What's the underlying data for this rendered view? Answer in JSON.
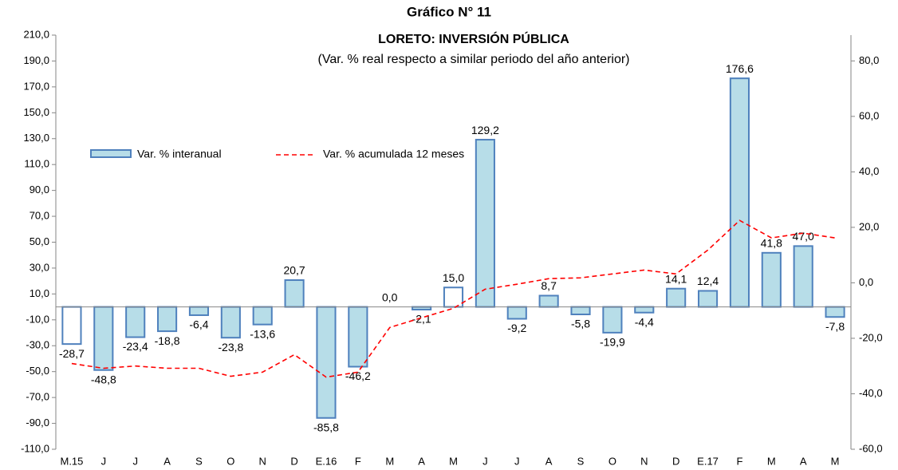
{
  "chart_data": {
    "type": "bar-line",
    "title": "Gráfico N° 11",
    "subtitle": "LORETO: INVERSIÓN PÚBLICA",
    "note": "(Var. % real respecto a similar periodo del año anterior)",
    "categories": [
      "M.15",
      "J",
      "J",
      "A",
      "S",
      "O",
      "N",
      "D",
      "E.16",
      "F",
      "M",
      "A",
      "M",
      "J",
      "J",
      "A",
      "S",
      "O",
      "N",
      "D",
      "E.17",
      "F",
      "M",
      "A",
      "M"
    ],
    "series": [
      {
        "name": "Var. % interanual",
        "type": "bar",
        "color": "#b7dde8",
        "edge_color": "#4f81bd",
        "bar_fills": [
          "#ffffff",
          "#b7dde8",
          "#b7dde8",
          "#b7dde8",
          "#b7dde8",
          "#b7dde8",
          "#b7dde8",
          "#b7dde8",
          "#b7dde8",
          "#b7dde8",
          "#b7dde8",
          "#b7dde8",
          "#ffffff",
          "#b7dde8",
          "#b7dde8",
          "#b7dde8",
          "#b7dde8",
          "#b7dde8",
          "#b7dde8",
          "#b7dde8",
          "#b7dde8",
          "#b7dde8",
          "#b7dde8",
          "#b7dde8",
          "#b7dde8"
        ],
        "values": [
          -28.7,
          -48.8,
          -23.4,
          -18.8,
          -6.4,
          -23.8,
          -13.6,
          20.7,
          -85.8,
          -46.2,
          0.0,
          -2.1,
          15.0,
          129.2,
          -9.2,
          8.7,
          -5.8,
          -19.9,
          -4.4,
          14.1,
          12.4,
          176.6,
          41.8,
          47.0,
          -7.8
        ],
        "value_labels": [
          "-28,7",
          "-48,8",
          "-23,4",
          "-18,8",
          "-6,4",
          "-23,8",
          "-13,6",
          "20,7",
          "-85,8",
          "-46,2",
          "0,0",
          "-2,1",
          "15,0",
          "129,2",
          "-9,2",
          "8,7",
          "-5,8",
          "-19,9",
          "-4,4",
          "14,1",
          "12,4",
          "176,6",
          "41,8",
          "47,0",
          "-7,8"
        ]
      },
      {
        "name": "Var. % acumulada 12 meses",
        "type": "line",
        "axis": "y2",
        "color": "#ff0000",
        "dash": true,
        "values": [
          -29.1,
          -30.8,
          -30.0,
          -30.8,
          -30.8,
          -33.7,
          -32.2,
          -25.9,
          -34.0,
          -32.2,
          -16.1,
          -12.6,
          -9.2,
          -2.3,
          -0.5,
          1.5,
          1.8,
          3.2,
          4.6,
          3.2,
          11.8,
          22.5,
          16.2,
          17.9,
          16.2
        ]
      }
    ],
    "ylim": [
      -110,
      210
    ],
    "yticks": [
      {
        "value": -110,
        "label": "-110,0"
      },
      {
        "value": -90,
        "label": "-90,0"
      },
      {
        "value": -70,
        "label": "-70,0"
      },
      {
        "value": -50,
        "label": "-50,0"
      },
      {
        "value": -30,
        "label": "-30,0"
      },
      {
        "value": -10,
        "label": "-10,0"
      },
      {
        "value": 10,
        "label": "10,0"
      },
      {
        "value": 30,
        "label": "30,0"
      },
      {
        "value": 50,
        "label": "50,0"
      },
      {
        "value": 70,
        "label": "70,0"
      },
      {
        "value": 90,
        "label": "90,0"
      },
      {
        "value": 110,
        "label": "110,0"
      },
      {
        "value": 130,
        "label": "130,0"
      },
      {
        "value": 150,
        "label": "150,0"
      },
      {
        "value": 170,
        "label": "170,0"
      },
      {
        "value": 190,
        "label": "190,0"
      },
      {
        "value": 210,
        "label": "210,0"
      }
    ],
    "y2lim": [
      -60,
      89.3
    ],
    "y2ticks": [
      {
        "value": -60,
        "label": "-60,0"
      },
      {
        "value": -40,
        "label": "-40,0"
      },
      {
        "value": -20,
        "label": "-20,0"
      },
      {
        "value": 0,
        "label": "0,0"
      },
      {
        "value": 20,
        "label": "20,0"
      },
      {
        "value": 40,
        "label": "40,0"
      },
      {
        "value": 60,
        "label": "60,0"
      },
      {
        "value": 80,
        "label": "80,0"
      }
    ],
    "grid": false
  }
}
